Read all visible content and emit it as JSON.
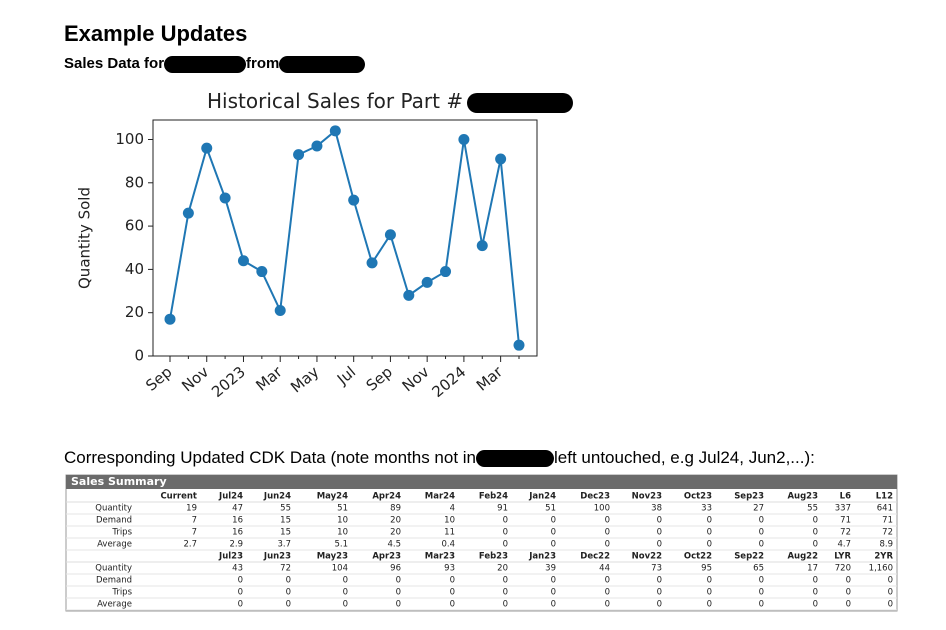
{
  "header": {
    "title": "Example Updates",
    "subtitle": "Sales Data for",
    "subtitle_join": "from"
  },
  "chart_data": {
    "type": "line",
    "title": "Historical Sales for Part #",
    "ylabel": "Quantity Sold",
    "categories": [
      "Sep",
      null,
      "Nov",
      null,
      "2023",
      null,
      "Mar",
      null,
      "May",
      null,
      "Jul",
      null,
      "Sep",
      null,
      "Nov",
      null,
      "2024",
      null,
      "Mar",
      null
    ],
    "series": [
      {
        "name": "Quantity Sold",
        "color": "#1f77b4",
        "values": [
          17,
          66,
          96,
          73,
          44,
          39,
          21,
          93,
          97,
          104,
          72,
          43,
          56,
          28,
          34,
          39,
          100,
          51,
          91,
          5
        ]
      }
    ],
    "ylim": [
      0,
      109
    ],
    "yticks": [
      0,
      20,
      40,
      60,
      80,
      100
    ]
  },
  "caption": {
    "before": "Corresponding Updated CDK Data (note months not in",
    "after": "left untouched, e.g Jul24, Jun2,...):"
  },
  "table": {
    "title": "Sales Summary",
    "blocks": [
      {
        "columns": [
          "Current",
          "Jul24",
          "Jun24",
          "May24",
          "Apr24",
          "Mar24",
          "Feb24",
          "Jan24",
          "Dec23",
          "Nov23",
          "Oct23",
          "Sep23",
          "Aug23",
          "L6",
          "L12"
        ],
        "rows": [
          {
            "label": "Quantity",
            "values": [
              "19",
              "47",
              "55",
              "51",
              "89",
              "4",
              "91",
              "51",
              "100",
              "38",
              "33",
              "27",
              "55",
              "337",
              "641"
            ]
          },
          {
            "label": "Demand",
            "values": [
              "7",
              "16",
              "15",
              "10",
              "20",
              "10",
              "0",
              "0",
              "0",
              "0",
              "0",
              "0",
              "0",
              "71",
              "71"
            ]
          },
          {
            "label": "Trips",
            "values": [
              "7",
              "16",
              "15",
              "10",
              "20",
              "11",
              "0",
              "0",
              "0",
              "0",
              "0",
              "0",
              "0",
              "72",
              "72"
            ]
          },
          {
            "label": "Average",
            "values": [
              "2.7",
              "2.9",
              "3.7",
              "5.1",
              "4.5",
              "0.4",
              "0",
              "0",
              "0",
              "0",
              "0",
              "0",
              "0",
              "4.7",
              "8.9"
            ]
          }
        ]
      },
      {
        "columns": [
          null,
          "Jul23",
          "Jun23",
          "May23",
          "Apr23",
          "Mar23",
          "Feb23",
          "Jan23",
          "Dec22",
          "Nov22",
          "Oct22",
          "Sep22",
          "Aug22",
          "LYR",
          "2YR"
        ],
        "rows": [
          {
            "label": "Quantity",
            "values": [
              null,
              "43",
              "72",
              "104",
              "96",
              "93",
              "20",
              "39",
              "44",
              "73",
              "95",
              "65",
              "17",
              "720",
              "1,160"
            ]
          },
          {
            "label": "Demand",
            "values": [
              null,
              "0",
              "0",
              "0",
              "0",
              "0",
              "0",
              "0",
              "0",
              "0",
              "0",
              "0",
              "0",
              "0",
              "0"
            ]
          },
          {
            "label": "Trips",
            "values": [
              null,
              "0",
              "0",
              "0",
              "0",
              "0",
              "0",
              "0",
              "0",
              "0",
              "0",
              "0",
              "0",
              "0",
              "0"
            ]
          },
          {
            "label": "Average",
            "values": [
              null,
              "0",
              "0",
              "0",
              "0",
              "0",
              "0",
              "0",
              "0",
              "0",
              "0",
              "0",
              "0",
              "0",
              "0"
            ]
          }
        ]
      }
    ]
  }
}
